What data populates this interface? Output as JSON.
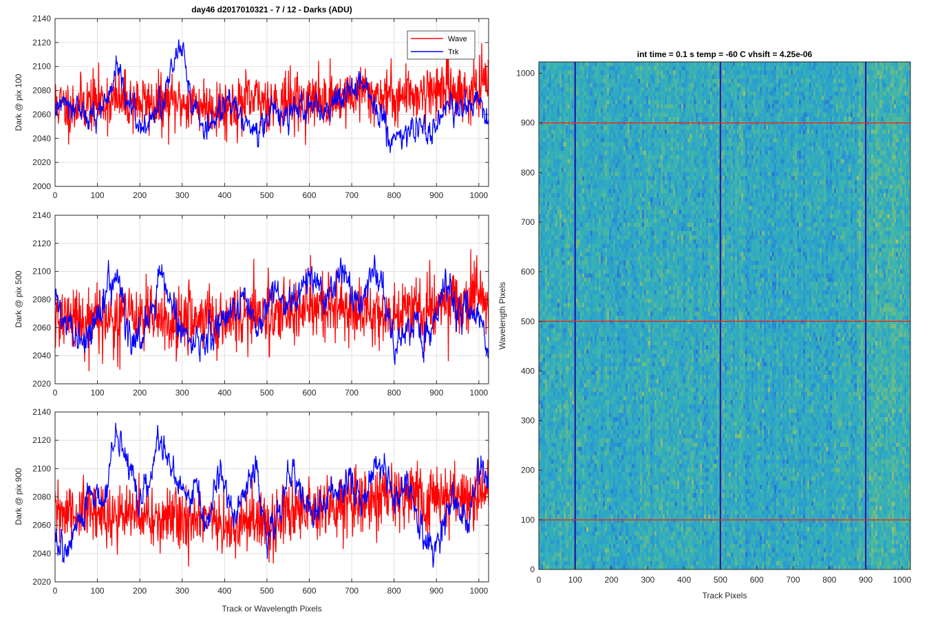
{
  "colors": {
    "wave": "#ff0000",
    "trk": "#0000ff",
    "grid": "#d9d9d9",
    "axis": "#262626",
    "image_base": "#2e9cc6",
    "image_mark": "#1b1baa",
    "image_hline": "#e03020"
  },
  "chart_data": [
    {
      "type": "line",
      "title": "day46 d2017010321 - 7 / 12 - Darks (ADU)",
      "xlabel": "",
      "ylabel": "Dark @ pix 100",
      "xlim": [
        0,
        1023
      ],
      "ylim": [
        2000,
        2140
      ],
      "xticks": [
        0,
        100,
        200,
        300,
        400,
        500,
        600,
        700,
        800,
        900,
        1000
      ],
      "yticks": [
        2000,
        2020,
        2040,
        2060,
        2080,
        2100,
        2120,
        2140
      ],
      "grid": true,
      "legend": "top-right",
      "series": [
        {
          "name": "Wave",
          "color": "#ff0000",
          "mean": 2070,
          "noise": 16,
          "seed": 11,
          "x": [
            0,
            30,
            80,
            150,
            250,
            300,
            400,
            480,
            560,
            650,
            720,
            800,
            860,
            920,
            980,
            1023
          ],
          "y": [
            2070,
            2065,
            2070,
            2072,
            2068,
            2070,
            2066,
            2072,
            2070,
            2072,
            2078,
            2075,
            2078,
            2082,
            2078,
            2085
          ]
        },
        {
          "name": "Trk",
          "color": "#0000ff",
          "mean": 2065,
          "noise": 5,
          "seed": 12,
          "x": [
            0,
            20,
            50,
            80,
            110,
            150,
            200,
            240,
            270,
            300,
            320,
            360,
            400,
            440,
            480,
            520,
            560,
            600,
            640,
            680,
            720,
            760,
            800,
            840,
            880,
            920,
            960,
            1000,
            1023
          ],
          "y": [
            2062,
            2075,
            2068,
            2055,
            2065,
            2095,
            2048,
            2060,
            2090,
            2122,
            2075,
            2045,
            2070,
            2055,
            2048,
            2065,
            2060,
            2070,
            2060,
            2075,
            2082,
            2068,
            2038,
            2050,
            2040,
            2068,
            2062,
            2078,
            2045
          ]
        }
      ]
    },
    {
      "type": "line",
      "xlabel": "",
      "ylabel": "Dark @ pix 500",
      "xlim": [
        0,
        1023
      ],
      "ylim": [
        2020,
        2140
      ],
      "xticks": [
        0,
        100,
        200,
        300,
        400,
        500,
        600,
        700,
        800,
        900,
        1000
      ],
      "yticks": [
        2020,
        2040,
        2060,
        2080,
        2100,
        2120,
        2140
      ],
      "grid": true,
      "series": [
        {
          "name": "Wave",
          "color": "#ff0000",
          "mean": 2068,
          "noise": 16,
          "seed": 21,
          "x": [
            0,
            100,
            200,
            300,
            400,
            500,
            600,
            700,
            800,
            900,
            1023
          ],
          "y": [
            2066,
            2066,
            2068,
            2064,
            2068,
            2070,
            2074,
            2072,
            2070,
            2076,
            2080
          ]
        },
        {
          "name": "Trk",
          "color": "#0000ff",
          "mean": 2068,
          "noise": 5,
          "seed": 22,
          "x": [
            0,
            20,
            50,
            80,
            110,
            150,
            180,
            220,
            250,
            300,
            350,
            400,
            440,
            480,
            520,
            560,
            600,
            640,
            680,
            720,
            760,
            800,
            850,
            880,
            920,
            960,
            1000,
            1023
          ],
          "y": [
            2080,
            2065,
            2048,
            2055,
            2080,
            2098,
            2040,
            2070,
            2098,
            2058,
            2045,
            2070,
            2080,
            2055,
            2085,
            2072,
            2098,
            2080,
            2108,
            2070,
            2108,
            2050,
            2062,
            2050,
            2094,
            2070,
            2070,
            2040
          ]
        }
      ]
    },
    {
      "type": "line",
      "xlabel": "Track or Wavelength Pixels",
      "ylabel": "Dark @ pix 900",
      "xlim": [
        0,
        1023
      ],
      "ylim": [
        2020,
        2140
      ],
      "xticks": [
        0,
        100,
        200,
        300,
        400,
        500,
        600,
        700,
        800,
        900,
        1000
      ],
      "yticks": [
        2020,
        2040,
        2060,
        2080,
        2100,
        2120,
        2140
      ],
      "grid": true,
      "series": [
        {
          "name": "Wave",
          "color": "#ff0000",
          "mean": 2072,
          "noise": 15,
          "seed": 31,
          "x": [
            0,
            100,
            200,
            300,
            400,
            500,
            600,
            700,
            800,
            900,
            1023
          ],
          "y": [
            2068,
            2068,
            2066,
            2064,
            2060,
            2060,
            2074,
            2078,
            2080,
            2080,
            2082
          ]
        },
        {
          "name": "Trk",
          "color": "#0000ff",
          "mean": 2080,
          "noise": 5,
          "seed": 32,
          "x": [
            0,
            20,
            50,
            80,
            110,
            140,
            170,
            200,
            220,
            245,
            270,
            300,
            330,
            360,
            390,
            420,
            440,
            470,
            500,
            530,
            560,
            590,
            620,
            660,
            690,
            720,
            760,
            800,
            840,
            870,
            900,
            940,
            970,
            1000,
            1023
          ],
          "y": [
            2050,
            2042,
            2060,
            2082,
            2072,
            2120,
            2108,
            2072,
            2088,
            2118,
            2100,
            2082,
            2090,
            2062,
            2095,
            2062,
            2080,
            2098,
            2052,
            2068,
            2098,
            2072,
            2065,
            2085,
            2095,
            2075,
            2105,
            2080,
            2090,
            2050,
            2045,
            2080,
            2060,
            2098,
            2090
          ]
        }
      ]
    },
    {
      "type": "heatmap",
      "title": "int time = 0.1 s   temp = -60 C   vhsift = 4.25e-06",
      "xlabel": "Track Pixels",
      "ylabel": "Wavelength Pixels",
      "xlim": [
        0,
        1023
      ],
      "ylim": [
        0,
        1023
      ],
      "xticks": [
        0,
        100,
        200,
        300,
        400,
        500,
        600,
        700,
        800,
        900,
        1000
      ],
      "yticks": [
        0,
        100,
        200,
        300,
        400,
        500,
        600,
        700,
        800,
        900,
        1000
      ],
      "vertical_markers": [
        100,
        500,
        900
      ],
      "horizontal_markers": [
        100,
        500,
        900
      ],
      "grid": false
    }
  ]
}
